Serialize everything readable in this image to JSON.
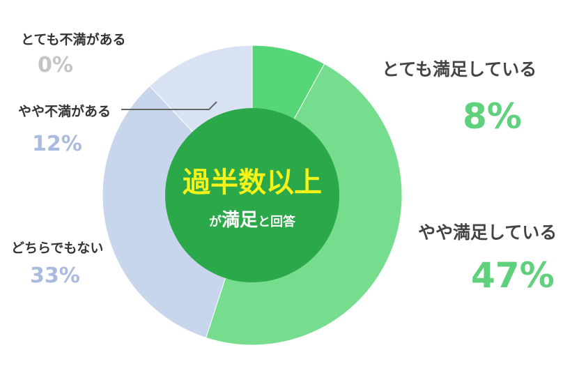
{
  "chart_data": {
    "type": "pie",
    "slices": [
      {
        "label": "とても満足している",
        "value": 8,
        "display": "8%",
        "color": "#56d677"
      },
      {
        "label": "やや満足している",
        "value": 47,
        "display": "47%",
        "color": "#77dd8e"
      },
      {
        "label": "どちらでもない",
        "value": 33,
        "display": "33%",
        "color": "#c7d5ed"
      },
      {
        "label": "やや不満がある",
        "value": 12,
        "display": "12%",
        "color": "#d9e2f3"
      },
      {
        "label": "とても不満がある",
        "value": 0,
        "display": "0%",
        "color": "#c8c8c8"
      }
    ],
    "center": {
      "headline": "過半数以上",
      "sub_prefix": "が",
      "sub_main": "満足",
      "sub_suffix": "と回答",
      "fill_color": "#2aa84a",
      "headline_color": "#f5f21a"
    },
    "label_colors": {
      "satisfied": "#5fd07c",
      "unsatisfied": "#aabbdd",
      "zero": "#c4c4c4"
    }
  }
}
